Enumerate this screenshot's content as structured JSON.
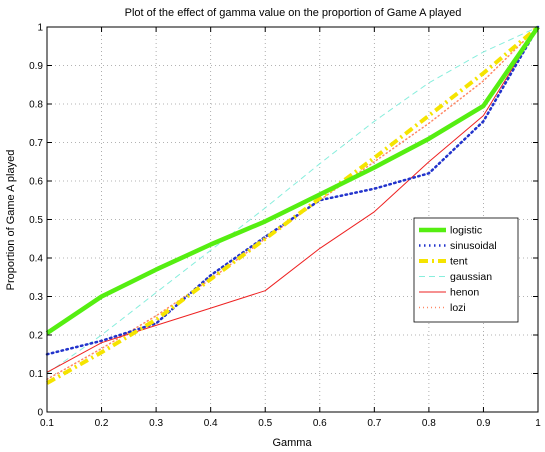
{
  "chart_data": {
    "type": "line",
    "title": "Plot of the effect of gamma value on the proportion of Game A played",
    "xlabel": "Gamma",
    "ylabel": "Proportion of Game A played",
    "xlim": [
      0.1,
      1
    ],
    "ylim": [
      0,
      1
    ],
    "grid": true,
    "legend_position": "right",
    "x": [
      0.1,
      0.2,
      0.3,
      0.4,
      0.5,
      0.6,
      0.7,
      0.8,
      0.9,
      1.0
    ],
    "x_ticks": [
      "0.1",
      "0.2",
      "0.3",
      "0.4",
      "0.5",
      "0.6",
      "0.7",
      "0.8",
      "0.9",
      "1"
    ],
    "y_ticks": [
      "0",
      "0.1",
      "0.2",
      "0.3",
      "0.4",
      "0.5",
      "0.6",
      "0.7",
      "0.8",
      "0.9",
      "1"
    ],
    "series": [
      {
        "name": "logistic",
        "color": "#55ee11",
        "style": "solid",
        "width": 4.5,
        "values": [
          0.205,
          0.3,
          0.37,
          0.435,
          0.495,
          0.565,
          0.635,
          0.71,
          0.795,
          1.0
        ]
      },
      {
        "name": "sinusoidal",
        "color": "#2233cc",
        "style": "dotted",
        "width": 2.5,
        "values": [
          0.15,
          0.185,
          0.23,
          0.355,
          0.455,
          0.55,
          0.58,
          0.62,
          0.755,
          1.0
        ]
      },
      {
        "name": "tent",
        "color": "#f5e400",
        "style": "dashdot",
        "width": 4,
        "values": [
          0.075,
          0.155,
          0.24,
          0.345,
          0.45,
          0.555,
          0.66,
          0.77,
          0.88,
          1.0
        ]
      },
      {
        "name": "gaussian",
        "color": "#88eedd",
        "style": "dashed",
        "width": 1,
        "values": [
          0.1,
          0.2,
          0.31,
          0.42,
          0.53,
          0.645,
          0.755,
          0.855,
          0.935,
          1.0
        ]
      },
      {
        "name": "henon",
        "color": "#ee2222",
        "style": "solid",
        "width": 1,
        "values": [
          0.103,
          0.18,
          0.225,
          0.27,
          0.315,
          0.425,
          0.52,
          0.65,
          0.77,
          1.0
        ]
      },
      {
        "name": "lozi",
        "color": "#ff8866",
        "style": "dotted",
        "width": 1.5,
        "values": [
          0.085,
          0.165,
          0.25,
          0.345,
          0.45,
          0.55,
          0.65,
          0.75,
          0.86,
          1.0
        ]
      }
    ]
  }
}
